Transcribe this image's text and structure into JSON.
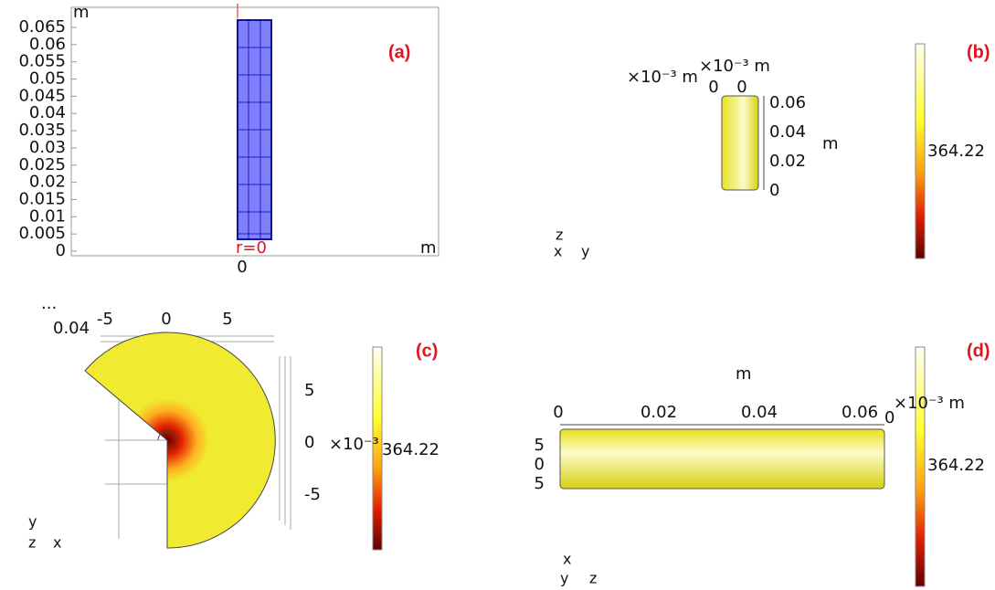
{
  "panels": [
    {
      "label": "(a)",
      "y_unit": "m",
      "x_unit": "m",
      "yticks": [
        "0.065",
        "0.06",
        "0.055",
        "0.05",
        "0.045",
        "0.04",
        "0.035",
        "0.03",
        "0.025",
        "0.02",
        "0.015",
        "0.01",
        "0.005",
        "0"
      ],
      "xticks": [
        "0"
      ],
      "annotation": "r=0"
    },
    {
      "label": "(b)",
      "scale_left": "×10⁻³ m",
      "scale_right": "×10⁻³ m",
      "top_ticks": [
        "0",
        "0"
      ],
      "zticks": [
        "0.06",
        "0.04",
        "0.02",
        "0"
      ],
      "z_unit": "m",
      "colorbar_label": "364.22",
      "axes": [
        "z",
        "x",
        "y"
      ]
    },
    {
      "label": "(c)",
      "ellipsis": "...",
      "corner_tick": "0.04",
      "top_ticks": [
        "-5",
        "0",
        "5"
      ],
      "right_ticks": [
        "5",
        "0",
        "-5"
      ],
      "scale": "×10⁻³",
      "colorbar_label": "364.22",
      "axes": [
        "y",
        "z",
        "x"
      ]
    },
    {
      "label": "(d)",
      "x_unit": "m",
      "top_ticks": [
        "0",
        "0.02",
        "0.04",
        "0.06"
      ],
      "right_tick": "0",
      "scale": "×10⁻³ m",
      "left_ticks": [
        "5",
        "0",
        "5"
      ],
      "colorbar_label": "364.22",
      "axes": [
        "x",
        "y",
        "z"
      ]
    }
  ]
}
